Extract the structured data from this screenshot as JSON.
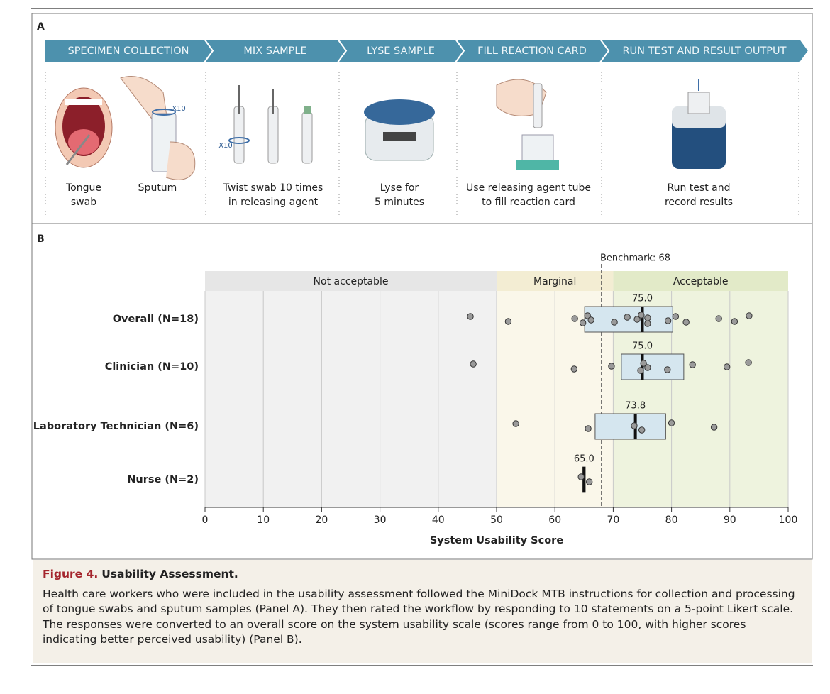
{
  "panel_a": {
    "label": "A",
    "steps": [
      {
        "title": "SPECIMEN COLLECTION",
        "captions": [
          [
            "Tongue",
            "swab"
          ],
          [
            "Sputum"
          ]
        ],
        "marks": [
          "X10"
        ]
      },
      {
        "title": "MIX SAMPLE",
        "captions": [
          [
            "Twist swab 10 times",
            "in releasing agent"
          ]
        ],
        "marks": [
          "X10"
        ]
      },
      {
        "title": "LYSE SAMPLE",
        "captions": [
          [
            "Lyse for",
            "5 minutes"
          ]
        ],
        "marks": []
      },
      {
        "title": "FILL REACTION CARD",
        "captions": [
          [
            "Use releasing agent tube",
            "to fill reaction card"
          ]
        ],
        "marks": []
      },
      {
        "title": "RUN TEST  AND RESULT OUTPUT",
        "captions": [
          [
            "Run test and",
            "record results"
          ]
        ],
        "marks": []
      }
    ]
  },
  "chart_data": {
    "type": "box",
    "panel_label": "B",
    "xlabel": "System Usability Score",
    "xlim": [
      0,
      100
    ],
    "xticks": [
      0,
      10,
      20,
      30,
      40,
      50,
      60,
      70,
      80,
      90,
      100
    ],
    "grid": true,
    "zones": [
      {
        "label": "Not acceptable",
        "start": 0,
        "end": 50,
        "color": "#f1f1f1",
        "header_color": "#e6e6e6"
      },
      {
        "label": "Marginal",
        "start": 50,
        "end": 70,
        "color": "#faf7ea",
        "header_color": "#f3edd3"
      },
      {
        "label": "Acceptable",
        "start": 70,
        "end": 100,
        "color": "#eef3de",
        "header_color": "#e2eac8"
      }
    ],
    "benchmark": {
      "value": 68,
      "label": "Benchmark: 68"
    },
    "box_color": "#d5e6ef",
    "point_color": "#9a9a9a",
    "series": [
      {
        "name": "Overall (N=18)",
        "q1": 65.1,
        "median": 75,
        "median_label": "75.0",
        "q3": 80.2,
        "points": [
          45.5,
          52,
          63.4,
          64.8,
          65.6,
          66.2,
          70.2,
          72.4,
          74.1,
          74.8,
          75.9,
          75.9,
          79.4,
          80.7,
          82.5,
          88.1,
          90.8,
          93.3
        ]
      },
      {
        "name": "Clinician (N=10)",
        "q1": 71.4,
        "median": 75,
        "median_label": "75.0",
        "q3": 82.1,
        "points": [
          46,
          63.3,
          69.7,
          74.7,
          75.2,
          75.9,
          79.3,
          83.6,
          89.5,
          93.2
        ]
      },
      {
        "name": "Laboratory Technician (N=6)",
        "q1": 66.9,
        "median": 73.8,
        "median_label": "73.8",
        "q3": 79,
        "points": [
          53.3,
          65.7,
          73.6,
          74.9,
          80,
          87.3
        ]
      },
      {
        "name": "Nurse (N=2)",
        "q1": 64.8,
        "median": 65,
        "median_label": "65.0",
        "q3": 65.2,
        "points": [
          64.5,
          65.9
        ]
      }
    ]
  },
  "caption": {
    "figure": "Figure 4.",
    "title": "Usability Assessment.",
    "text": "Health care workers who were included in the usability assessment followed the MiniDock MTB instructions for collection and processing of tongue swabs and sputum samples (Panel A). They then rated the workflow by responding to 10 statements on a 5-point Likert scale. The responses were converted to an overall score on the system usability scale (scores range from 0 to 100, with higher scores indicating better perceived usability) (Panel B)."
  }
}
